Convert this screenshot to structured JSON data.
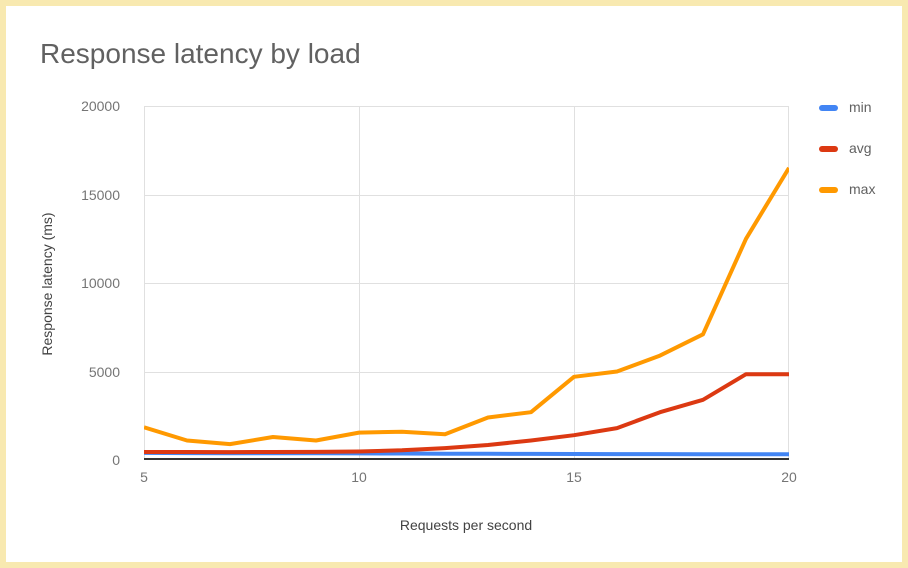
{
  "title": "Response latency by load",
  "chart_data": {
    "type": "line",
    "title": "Response latency by load",
    "xlabel": "Requests per second",
    "ylabel": "Response latency (ms)",
    "x": [
      5,
      6,
      7,
      8,
      9,
      10,
      11,
      12,
      13,
      14,
      15,
      16,
      17,
      18,
      19,
      20
    ],
    "xlim": [
      5,
      20
    ],
    "ylim": [
      0,
      20000
    ],
    "x_ticks": [
      5,
      10,
      15,
      20
    ],
    "y_ticks": [
      0,
      5000,
      10000,
      15000,
      20000
    ],
    "grid": true,
    "legend_position": "right",
    "series": [
      {
        "name": "min",
        "color": "#4285f4",
        "values": [
          400,
          390,
          385,
          385,
          380,
          375,
          365,
          355,
          350,
          345,
          340,
          335,
          335,
          330,
          330,
          330
        ]
      },
      {
        "name": "avg",
        "color": "#dc3912",
        "values": [
          450,
          450,
          445,
          450,
          460,
          480,
          550,
          670,
          850,
          1100,
          1400,
          1800,
          2700,
          3400,
          4850,
          4850
        ]
      },
      {
        "name": "max",
        "color": "#ff9900",
        "values": [
          1850,
          1100,
          900,
          1300,
          1100,
          1550,
          1600,
          1450,
          2400,
          2700,
          4700,
          5000,
          5900,
          7100,
          12500,
          16500
        ]
      }
    ]
  },
  "colors": {
    "frame_border": "#f8e9b0",
    "grid_line": "#e0e0e0",
    "axis_baseline": "#333333",
    "title_text": "#616161",
    "tick_text": "#757575",
    "axis_title_text": "#424242"
  }
}
